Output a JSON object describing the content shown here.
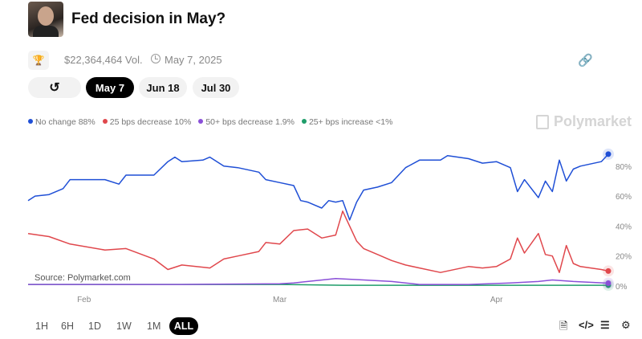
{
  "header": {
    "title": "Fed decision in May?",
    "volume": "$22,364,464 Vol.",
    "date": "May 7, 2025"
  },
  "date_tabs": [
    {
      "label": "May 7",
      "active": true
    },
    {
      "label": "Jun 18"
    },
    {
      "label": "Jul 30"
    }
  ],
  "brand": "Polymarket",
  "source": "Source: Polymarket.com",
  "timeframes": [
    "1H",
    "6H",
    "1D",
    "1W",
    "1M",
    "ALL"
  ],
  "active_timeframe": "ALL",
  "icons": [
    "trophy-icon",
    "clock-icon",
    "link-icon",
    "history-icon",
    "document-icon",
    "code-icon",
    "sliders-icon",
    "gear-icon"
  ],
  "chart_data": {
    "type": "line",
    "x_ticks": [
      "Feb",
      "Mar",
      "Apr"
    ],
    "y_ticks": [
      "0%",
      "20%",
      "40%",
      "60%",
      "80%"
    ],
    "ylim": [
      0,
      100
    ],
    "xlim": [
      "2025-01-24",
      "2025-04-17"
    ],
    "grid": false,
    "legend_position": "top-left",
    "series": [
      {
        "name": "No change",
        "legend": "No change 88%",
        "color": "#1f4fd6",
        "points": [
          [
            "2025-01-24",
            57
          ],
          [
            "2025-01-25",
            60
          ],
          [
            "2025-01-27",
            61
          ],
          [
            "2025-01-29",
            65
          ],
          [
            "2025-01-30",
            71
          ],
          [
            "2025-02-04",
            71
          ],
          [
            "2025-02-06",
            68
          ],
          [
            "2025-02-07",
            74
          ],
          [
            "2025-02-11",
            74
          ],
          [
            "2025-02-13",
            83
          ],
          [
            "2025-02-14",
            86
          ],
          [
            "2025-02-15",
            83
          ],
          [
            "2025-02-18",
            84
          ],
          [
            "2025-02-19",
            86
          ],
          [
            "2025-02-21",
            80
          ],
          [
            "2025-02-23",
            79
          ],
          [
            "2025-02-26",
            76
          ],
          [
            "2025-02-27",
            71
          ],
          [
            "2025-03-01",
            69
          ],
          [
            "2025-03-03",
            67
          ],
          [
            "2025-03-04",
            57
          ],
          [
            "2025-03-05",
            56
          ],
          [
            "2025-03-07",
            52
          ],
          [
            "2025-03-08",
            57
          ],
          [
            "2025-03-09",
            56
          ],
          [
            "2025-03-10",
            57
          ],
          [
            "2025-03-11",
            44
          ],
          [
            "2025-03-12",
            56
          ],
          [
            "2025-03-13",
            64
          ],
          [
            "2025-03-15",
            66
          ],
          [
            "2025-03-17",
            69
          ],
          [
            "2025-03-19",
            79
          ],
          [
            "2025-03-21",
            84
          ],
          [
            "2025-03-24",
            84
          ],
          [
            "2025-03-25",
            87
          ],
          [
            "2025-03-28",
            85
          ],
          [
            "2025-03-30",
            82
          ],
          [
            "2025-04-01",
            83
          ],
          [
            "2025-04-03",
            79
          ],
          [
            "2025-04-04",
            63
          ],
          [
            "2025-04-05",
            71
          ],
          [
            "2025-04-07",
            59
          ],
          [
            "2025-04-08",
            70
          ],
          [
            "2025-04-09",
            63
          ],
          [
            "2025-04-10",
            84
          ],
          [
            "2025-04-11",
            70
          ],
          [
            "2025-04-12",
            78
          ],
          [
            "2025-04-13",
            80
          ],
          [
            "2025-04-16",
            83
          ],
          [
            "2025-04-17",
            88
          ]
        ]
      },
      {
        "name": "25 bps decrease",
        "legend": "25 bps decrease 10%",
        "color": "#e0474c",
        "points": [
          [
            "2025-01-24",
            35
          ],
          [
            "2025-01-27",
            33
          ],
          [
            "2025-01-30",
            28
          ],
          [
            "2025-02-04",
            24
          ],
          [
            "2025-02-07",
            25
          ],
          [
            "2025-02-11",
            18
          ],
          [
            "2025-02-13",
            11
          ],
          [
            "2025-02-15",
            14
          ],
          [
            "2025-02-19",
            12
          ],
          [
            "2025-02-21",
            18
          ],
          [
            "2025-02-23",
            20
          ],
          [
            "2025-02-26",
            23
          ],
          [
            "2025-02-27",
            29
          ],
          [
            "2025-03-01",
            28
          ],
          [
            "2025-03-03",
            37
          ],
          [
            "2025-03-05",
            38
          ],
          [
            "2025-03-07",
            32
          ],
          [
            "2025-03-09",
            34
          ],
          [
            "2025-03-10",
            50
          ],
          [
            "2025-03-12",
            30
          ],
          [
            "2025-03-13",
            25
          ],
          [
            "2025-03-15",
            21
          ],
          [
            "2025-03-17",
            17
          ],
          [
            "2025-03-19",
            14
          ],
          [
            "2025-03-21",
            12
          ],
          [
            "2025-03-24",
            9
          ],
          [
            "2025-03-28",
            13
          ],
          [
            "2025-03-30",
            12
          ],
          [
            "2025-04-01",
            13
          ],
          [
            "2025-04-03",
            18
          ],
          [
            "2025-04-04",
            32
          ],
          [
            "2025-04-05",
            22
          ],
          [
            "2025-04-07",
            35
          ],
          [
            "2025-04-08",
            21
          ],
          [
            "2025-04-09",
            20
          ],
          [
            "2025-04-10",
            9
          ],
          [
            "2025-04-11",
            27
          ],
          [
            "2025-04-12",
            15
          ],
          [
            "2025-04-13",
            13
          ],
          [
            "2025-04-16",
            11
          ],
          [
            "2025-04-17",
            10
          ]
        ]
      },
      {
        "name": "50+ bps decrease",
        "legend": "50+ bps decrease 1.9%",
        "color": "#8a4fd8",
        "points": [
          [
            "2025-01-24",
            1
          ],
          [
            "2025-02-15",
            1
          ],
          [
            "2025-03-01",
            1.5
          ],
          [
            "2025-03-03",
            2
          ],
          [
            "2025-03-05",
            3
          ],
          [
            "2025-03-09",
            5
          ],
          [
            "2025-03-13",
            4
          ],
          [
            "2025-03-17",
            3
          ],
          [
            "2025-03-21",
            1
          ],
          [
            "2025-03-28",
            1
          ],
          [
            "2025-04-03",
            2
          ],
          [
            "2025-04-07",
            3
          ],
          [
            "2025-04-09",
            4
          ],
          [
            "2025-04-12",
            3
          ],
          [
            "2025-04-17",
            1.9
          ]
        ]
      },
      {
        "name": "25+ bps increase",
        "legend": "25+ bps increase <1%",
        "color": "#1f9d6a",
        "points": [
          [
            "2025-01-24",
            1
          ],
          [
            "2025-03-01",
            1
          ],
          [
            "2025-03-10",
            0.5
          ],
          [
            "2025-04-17",
            0.5
          ]
        ]
      }
    ]
  }
}
